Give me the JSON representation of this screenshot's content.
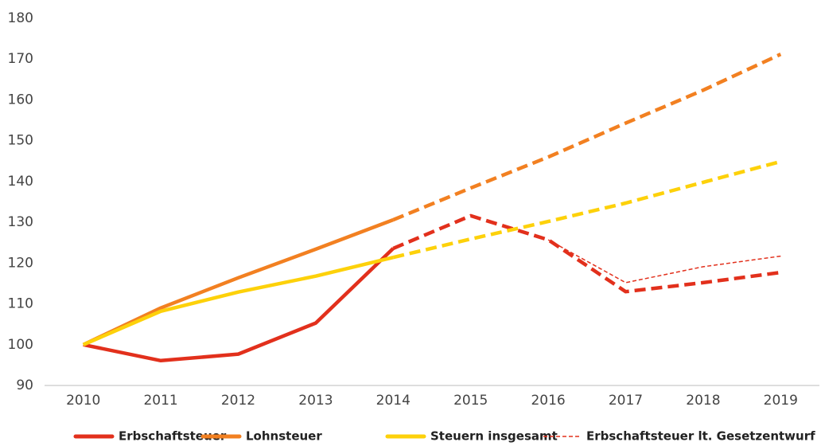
{
  "chart_data": {
    "type": "line",
    "categories": [
      "2010",
      "2011",
      "2012",
      "2013",
      "2014",
      "2015",
      "2016",
      "2017",
      "2018",
      "2019"
    ],
    "series": [
      {
        "name": "Erbschaftsteuer",
        "color": "#e2301c",
        "style": "solid",
        "dashed_from": "2014",
        "values": [
          100,
          96.1,
          97.7,
          105.3,
          123.6,
          131.6,
          125.7,
          113,
          115.2,
          117.7
        ]
      },
      {
        "name": "Lohnsteuer",
        "color": "#f28021",
        "style": "solid",
        "dashed_from": "2014",
        "values": [
          100,
          109,
          116.4,
          123.4,
          130.6,
          138.4,
          146,
          154.3,
          162.4,
          171.2
        ]
      },
      {
        "name": "Steuern insgesamt",
        "color": "#fdd10a",
        "style": "solid",
        "dashed_from": "2014",
        "values": [
          100,
          108.2,
          112.9,
          116.8,
          121.4,
          125.9,
          130.2,
          134.7,
          139.8,
          144.9
        ]
      },
      {
        "name": "Erbschaftsteuer lt. Gesetzentwurf",
        "color": "#e2301c",
        "style": "thin-dashed",
        "values": [
          null,
          null,
          null,
          null,
          null,
          null,
          125.7,
          115.2,
          119.1,
          121.7
        ]
      }
    ],
    "ylim": [
      90,
      180
    ],
    "yticks": [
      90,
      100,
      110,
      120,
      130,
      140,
      150,
      160,
      170,
      180
    ],
    "grid": false,
    "legend": "bottom"
  }
}
